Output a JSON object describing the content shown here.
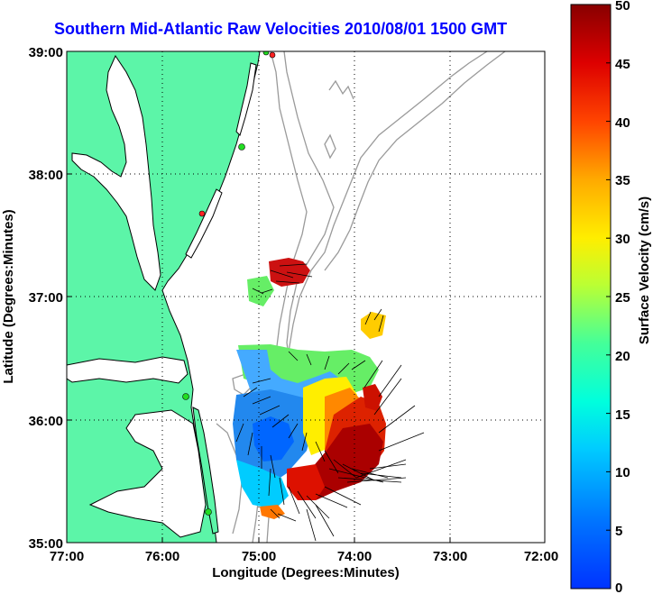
{
  "title": "Southern Mid-Atlantic Raw Velocities 2010/08/01 1500 GMT",
  "x_axis": {
    "label": "Longitude (Degrees:Minutes)",
    "ticks": [
      "77:00",
      "76:00",
      "75:00",
      "74:00",
      "73:00",
      "72:00"
    ]
  },
  "y_axis": {
    "label": "Latitude (Degrees:Minutes)",
    "ticks": [
      "39:00",
      "38:00",
      "37:00",
      "36:00",
      "35:00"
    ]
  },
  "colorbar": {
    "label": "Surface Velocity (cm/s)",
    "ticks": [
      "50",
      "45",
      "40",
      "35",
      "30",
      "25",
      "20",
      "15",
      "10",
      "5",
      "0"
    ],
    "min": 0,
    "max": 50
  },
  "colors": {
    "title": "#0000ff",
    "land": "#5cf5a8",
    "water": "#ffffff",
    "bathymetry": "#999999",
    "grid": "#000000",
    "station_green": "#22dd22",
    "station_red": "#ff2222"
  },
  "map": {
    "lon_range": [
      -77,
      -72
    ],
    "lat_range": [
      35,
      39
    ],
    "grid": "dotted"
  }
}
